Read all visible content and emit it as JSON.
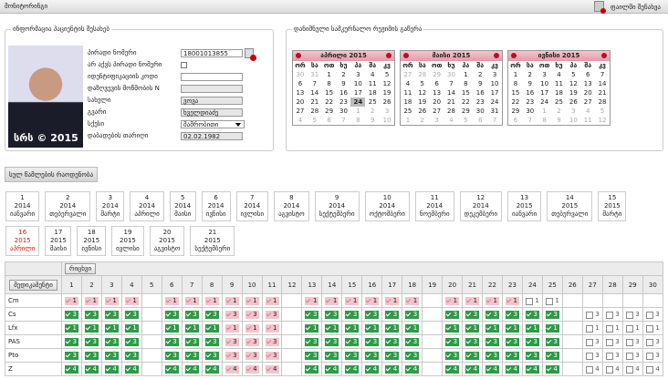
{
  "header": {
    "title": "მონიტორინგი",
    "action": "ფაილში შენახვა"
  },
  "patient": {
    "title": "ინფორმაცია პაციენტის შესახებ",
    "photo_caption": "სრს © 2015",
    "fields": [
      {
        "label": "პირადი ნომერი",
        "value": "18001013855",
        "kind": "search"
      },
      {
        "label": "არ აქვს პირადი ნომერი",
        "kind": "checkbox"
      },
      {
        "label": "იდენტიფიკაციის კოდი",
        "kind": "input"
      },
      {
        "label": "დაზღვევის მოწმობის N",
        "kind": "readonly"
      },
      {
        "label": "სახელი",
        "value": "ვოვა",
        "kind": "readonly"
      },
      {
        "label": "გვარი",
        "value": "ხველდიაძე",
        "kind": "readonly"
      },
      {
        "label": "სქესი",
        "value": "მამრობითი",
        "kind": "select"
      },
      {
        "label": "დაბადების თარიღი",
        "value": "02.02.1982",
        "kind": "readonly"
      }
    ]
  },
  "regimen": {
    "title": "დანიშნული სამკურნალო რეჟიმის გაწერა",
    "weekdays": [
      "ორ",
      "სა",
      "ოთ",
      "ხუ",
      "პა",
      "შა",
      "კვ"
    ],
    "calendars": [
      {
        "month": "აპრილი 2015",
        "selected": 24,
        "weeks": [
          [
            30,
            31,
            1,
            2,
            3,
            4,
            5
          ],
          [
            6,
            7,
            8,
            9,
            10,
            11,
            12
          ],
          [
            13,
            14,
            15,
            16,
            17,
            18,
            19
          ],
          [
            20,
            21,
            22,
            23,
            24,
            25,
            26
          ],
          [
            27,
            28,
            29,
            30,
            1,
            2,
            3
          ],
          [
            4,
            5,
            6,
            7,
            8,
            9,
            10
          ]
        ]
      },
      {
        "month": "მაისი 2015",
        "weeks": [
          [
            27,
            28,
            29,
            30,
            1,
            2,
            3
          ],
          [
            4,
            5,
            6,
            7,
            8,
            9,
            10
          ],
          [
            11,
            12,
            13,
            14,
            15,
            16,
            17
          ],
          [
            18,
            19,
            20,
            21,
            22,
            23,
            24
          ],
          [
            25,
            26,
            27,
            28,
            29,
            30,
            31
          ],
          [
            1,
            2,
            3,
            4,
            5,
            6,
            7
          ]
        ]
      },
      {
        "month": "ივნისი 2015",
        "weeks": [
          [
            1,
            2,
            3,
            4,
            5,
            6,
            7
          ],
          [
            8,
            9,
            10,
            11,
            12,
            13,
            14
          ],
          [
            15,
            16,
            17,
            18,
            19,
            20,
            21
          ],
          [
            22,
            23,
            24,
            25,
            26,
            27,
            28
          ],
          [
            29,
            30,
            1,
            2,
            3,
            4,
            5
          ],
          [
            6,
            7,
            8,
            9,
            10,
            11,
            12
          ]
        ]
      }
    ]
  },
  "total_button": "სულ წამლების რაოდენობა",
  "periods": [
    {
      "n": 1,
      "year": 2014,
      "month": "იანვარი"
    },
    {
      "n": 2,
      "year": 2014,
      "month": "თებერვალი"
    },
    {
      "n": 3,
      "year": 2014,
      "month": "მარტი"
    },
    {
      "n": 4,
      "year": 2014,
      "month": "აპრილი"
    },
    {
      "n": 5,
      "year": 2014,
      "month": "მაისი"
    },
    {
      "n": 6,
      "year": 2014,
      "month": "ივნისი"
    },
    {
      "n": 7,
      "year": 2014,
      "month": "ივლისი"
    },
    {
      "n": 8,
      "year": 2014,
      "month": "აგვისტო"
    },
    {
      "n": 9,
      "year": 2014,
      "month": "სექტემბერი"
    },
    {
      "n": 10,
      "year": 2014,
      "month": "ოქტომბერი"
    },
    {
      "n": 11,
      "year": 2014,
      "month": "ნოემბერი"
    },
    {
      "n": 12,
      "year": 2014,
      "month": "დეკემბერი"
    },
    {
      "n": 13,
      "year": 2015,
      "month": "იანვარი"
    },
    {
      "n": 14,
      "year": 2015,
      "month": "თებერვალი"
    },
    {
      "n": 15,
      "year": 2015,
      "month": "მარტი"
    },
    {
      "n": 16,
      "year": 2015,
      "month": "აპრილი",
      "active": true
    },
    {
      "n": 17,
      "year": 2015,
      "month": "მაისი"
    },
    {
      "n": 18,
      "year": 2015,
      "month": "ივნისი"
    },
    {
      "n": 19,
      "year": 2015,
      "month": "ივლისი"
    },
    {
      "n": 20,
      "year": 2015,
      "month": "აგვისტო"
    },
    {
      "n": 21,
      "year": 2015,
      "month": "სექტემბერი"
    }
  ],
  "table": {
    "day_header": "რიცხვი",
    "drug_header": "მედიკამენტი",
    "days": [
      1,
      2,
      3,
      4,
      5,
      6,
      7,
      8,
      9,
      10,
      11,
      12,
      13,
      14,
      15,
      16,
      17,
      18,
      19,
      20,
      21,
      22,
      23,
      24,
      25,
      26,
      27,
      28,
      29,
      30
    ],
    "rows": [
      {
        "name": "Cm",
        "values": [
          1,
          1,
          1,
          1,
          null,
          1,
          1,
          1,
          1,
          1,
          1,
          null,
          1,
          1,
          1,
          1,
          1,
          1,
          null,
          1,
          1,
          1,
          1,
          1,
          1,
          null,
          null,
          null,
          null,
          null
        ],
        "status": [
          "m",
          "m",
          "m",
          "m",
          null,
          "m",
          "m",
          "m",
          "m",
          "m",
          "m",
          null,
          "m",
          "m",
          "m",
          "m",
          "m",
          "m",
          null,
          "m",
          "m",
          "m",
          "m",
          "c",
          "c",
          null,
          null,
          null,
          null,
          null
        ]
      },
      {
        "name": "Cs",
        "values": [
          3,
          3,
          3,
          3,
          null,
          3,
          3,
          3,
          3,
          3,
          3,
          null,
          3,
          3,
          3,
          3,
          3,
          3,
          null,
          3,
          3,
          3,
          3,
          3,
          3,
          null,
          3,
          3,
          3,
          3
        ],
        "status": [
          "t",
          "t",
          "t",
          "t",
          null,
          "t",
          "t",
          "t",
          "m",
          "m",
          "m",
          null,
          "t",
          "t",
          "t",
          "t",
          "t",
          "t",
          null,
          "t",
          "t",
          "t",
          "t",
          "t",
          "t",
          null,
          "c",
          "c",
          "c",
          "c"
        ]
      },
      {
        "name": "Lfx",
        "values": [
          1,
          1,
          1,
          1,
          null,
          1,
          1,
          1,
          1,
          1,
          1,
          null,
          1,
          1,
          1,
          1,
          1,
          1,
          null,
          1,
          1,
          1,
          1,
          1,
          1,
          null,
          1,
          1,
          1,
          1
        ],
        "status": [
          "t",
          "t",
          "t",
          "t",
          null,
          "t",
          "t",
          "t",
          "m",
          "m",
          "m",
          null,
          "t",
          "t",
          "t",
          "t",
          "t",
          "t",
          null,
          "t",
          "t",
          "t",
          "t",
          "t",
          "t",
          null,
          "c",
          "c",
          "c",
          "c"
        ]
      },
      {
        "name": "PAS",
        "values": [
          3,
          3,
          3,
          3,
          null,
          3,
          3,
          3,
          3,
          3,
          3,
          null,
          3,
          3,
          3,
          3,
          3,
          3,
          null,
          3,
          3,
          3,
          3,
          3,
          3,
          null,
          3,
          3,
          3,
          3
        ],
        "status": [
          "t",
          "t",
          "t",
          "t",
          null,
          "t",
          "t",
          "t",
          "m",
          "m",
          "m",
          null,
          "t",
          "t",
          "t",
          "t",
          "t",
          "t",
          null,
          "t",
          "t",
          "t",
          "t",
          "t",
          "t",
          null,
          "c",
          "c",
          "c",
          "c"
        ]
      },
      {
        "name": "Pto",
        "values": [
          3,
          3,
          3,
          3,
          null,
          3,
          3,
          3,
          3,
          3,
          3,
          null,
          3,
          3,
          3,
          3,
          3,
          3,
          null,
          3,
          3,
          3,
          3,
          3,
          3,
          null,
          3,
          3,
          3,
          3
        ],
        "status": [
          "t",
          "t",
          "t",
          "t",
          null,
          "t",
          "t",
          "t",
          "m",
          "m",
          "m",
          null,
          "t",
          "t",
          "t",
          "t",
          "t",
          "t",
          null,
          "t",
          "t",
          "t",
          "t",
          "t",
          "t",
          null,
          "c",
          "c",
          "c",
          "c"
        ]
      },
      {
        "name": "Z",
        "values": [
          4,
          4,
          4,
          4,
          null,
          4,
          4,
          4,
          4,
          4,
          4,
          null,
          4,
          4,
          4,
          4,
          4,
          4,
          null,
          4,
          4,
          4,
          4,
          4,
          4,
          null,
          4,
          4,
          4,
          4
        ],
        "status": [
          "t",
          "t",
          "t",
          "t",
          null,
          "t",
          "t",
          "t",
          "m",
          "m",
          "m",
          null,
          "t",
          "t",
          "t",
          "t",
          "t",
          "t",
          null,
          "t",
          "t",
          "t",
          "t",
          "t",
          "t",
          null,
          "c",
          "c",
          "c",
          "c"
        ]
      }
    ]
  }
}
